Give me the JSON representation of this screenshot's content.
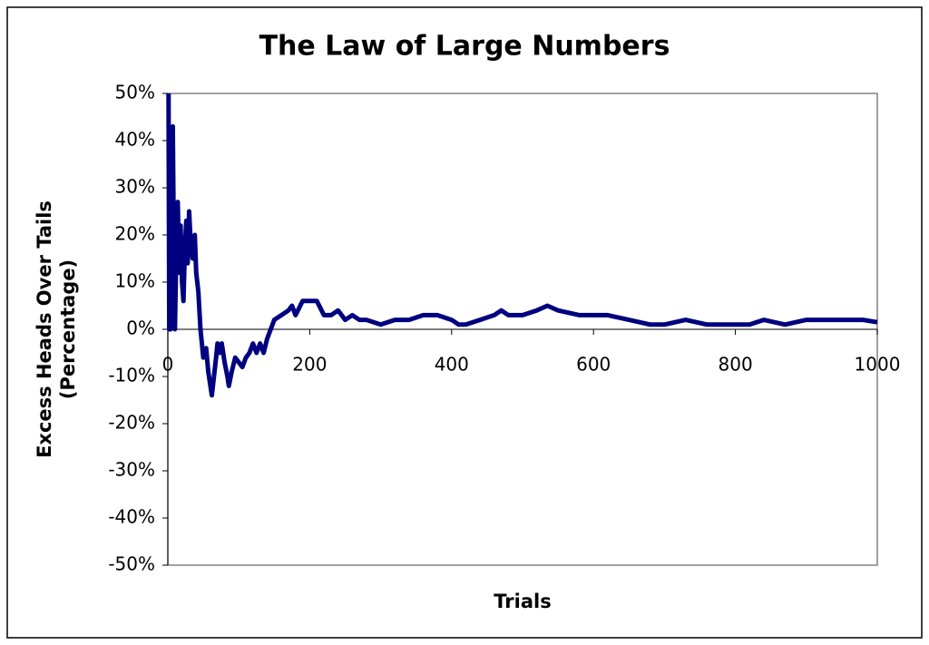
{
  "chart_data": {
    "type": "line",
    "title": "The Law of Large Numbers",
    "xlabel": "Trials",
    "ylabel": [
      "Excess Heads Over Tails",
      "(Percentage)"
    ],
    "x": [
      1,
      2,
      3,
      4,
      5,
      7,
      8,
      10,
      12,
      14,
      16,
      18,
      20,
      22,
      24,
      26,
      28,
      30,
      32,
      35,
      38,
      40,
      43,
      46,
      50,
      54,
      57,
      60,
      62,
      65,
      68,
      70,
      73,
      76,
      80,
      84,
      86,
      90,
      95,
      100,
      105,
      110,
      115,
      120,
      125,
      130,
      135,
      140,
      145,
      150,
      160,
      170,
      175,
      180,
      190,
      200,
      210,
      220,
      230,
      240,
      250,
      260,
      270,
      280,
      300,
      320,
      340,
      360,
      380,
      400,
      410,
      420,
      440,
      460,
      470,
      480,
      500,
      520,
      535,
      550,
      580,
      600,
      620,
      650,
      680,
      700,
      730,
      760,
      780,
      800,
      820,
      840,
      870,
      900,
      930,
      950,
      980,
      1000
    ],
    "series": [
      {
        "name": "Excess Heads Over Tails",
        "color": "#000080",
        "values": [
          50,
          0,
          33,
          0,
          20,
          43,
          25,
          0,
          17,
          27,
          12,
          22,
          10,
          6,
          17,
          23,
          14,
          25,
          19,
          15,
          20,
          12,
          8,
          0,
          -6,
          -4,
          -9,
          -12,
          -14,
          -10,
          -6,
          -3,
          -5,
          -3,
          -7,
          -10,
          -12,
          -9,
          -6,
          -7,
          -8,
          -6,
          -5,
          -3,
          -5,
          -3,
          -5,
          -2,
          0,
          2,
          3,
          4,
          5,
          3,
          6,
          6,
          6,
          3,
          3,
          4,
          2,
          3,
          2,
          2,
          1,
          2,
          2,
          3,
          3,
          2,
          1,
          1,
          2,
          3,
          4,
          3,
          3,
          4,
          5,
          4,
          3,
          3,
          3,
          2,
          1,
          1,
          2,
          1,
          1,
          1,
          1,
          2,
          1,
          2,
          2,
          2,
          2,
          1.5
        ]
      }
    ],
    "xlim": [
      0,
      1000
    ],
    "xticks": [
      0,
      200,
      400,
      600,
      800,
      1000
    ],
    "ylim": [
      -50,
      50
    ],
    "yticks": [
      {
        "value": -50,
        "label": "-50%"
      },
      {
        "value": -40,
        "label": "-40%"
      },
      {
        "value": -30,
        "label": "-30%"
      },
      {
        "value": -20,
        "label": "-20%"
      },
      {
        "value": -10,
        "label": "-10%"
      },
      {
        "value": 0,
        "label": "0%"
      },
      {
        "value": 10,
        "label": "10%"
      },
      {
        "value": 20,
        "label": "20%"
      },
      {
        "value": 30,
        "label": "30%"
      },
      {
        "value": 40,
        "label": "40%"
      },
      {
        "value": 50,
        "label": "50%"
      }
    ],
    "grid": false
  }
}
